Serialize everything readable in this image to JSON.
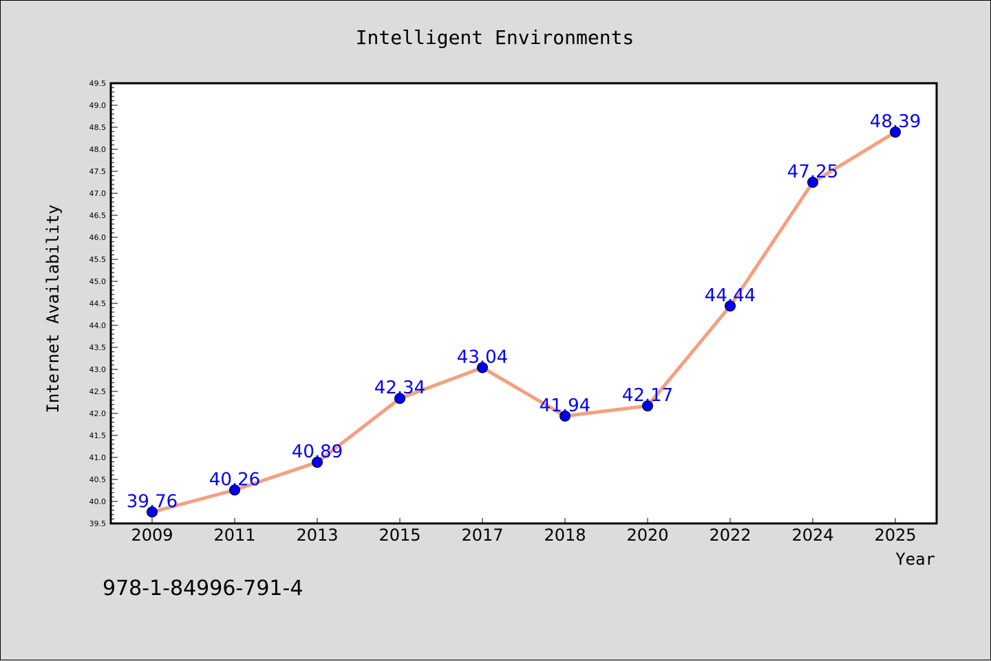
{
  "chart_data": {
    "type": "line",
    "title": "Intelligent Environments",
    "xlabel": "Year",
    "ylabel": "Internet Availability",
    "categories": [
      "2009",
      "2011",
      "2013",
      "2015",
      "2017",
      "2018",
      "2020",
      "2022",
      "2024",
      "2025"
    ],
    "series": [
      {
        "values": [
          39.76,
          40.26,
          40.89,
          42.34,
          43.04,
          41.94,
          42.17,
          44.44,
          47.25,
          48.39
        ],
        "line_color": "#f4a07f",
        "marker_color": "#0000ee"
      }
    ],
    "data_labels": [
      "39.76",
      "40.26",
      "40.89",
      "42.34",
      "43.04",
      "41.94",
      "42.17",
      "44.44",
      "47.25",
      "48.39"
    ],
    "ylim": [
      39.5,
      49.5
    ],
    "yticks": [
      "39.5",
      "40.0",
      "40.5",
      "41.0",
      "41.5",
      "42.0",
      "42.5",
      "43.0",
      "43.5",
      "44.0",
      "44.5",
      "45.0",
      "45.5",
      "46.0",
      "46.5",
      "47.0",
      "47.5",
      "48.0",
      "48.5",
      "49.0",
      "49.5"
    ],
    "grid": false,
    "legend": "none"
  },
  "footer": {
    "isbn": "978-1-84996-791-4"
  }
}
